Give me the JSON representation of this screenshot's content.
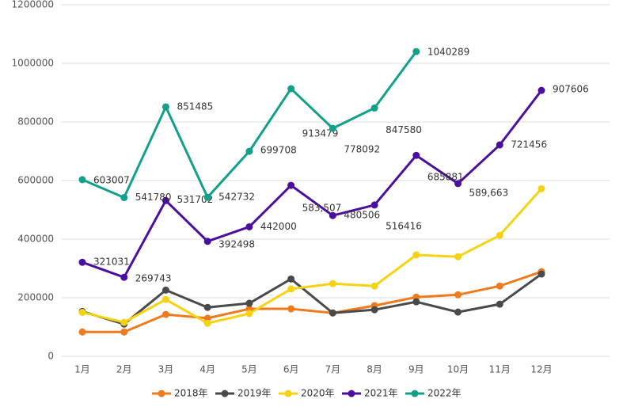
{
  "chart_data": {
    "type": "line",
    "categories": [
      "1月",
      "2月",
      "3月",
      "4月",
      "5月",
      "6月",
      "7月",
      "8月",
      "9月",
      "10月",
      "11月",
      "12月"
    ],
    "ylim": [
      0,
      1200000
    ],
    "yticks": [
      0,
      200000,
      400000,
      600000,
      800000,
      1000000,
      1200000
    ],
    "grid": true,
    "legend": "bottom",
    "series": [
      {
        "name": "2018年",
        "color": "#f07a1e",
        "values": [
          83000,
          83000,
          143000,
          130000,
          162000,
          162000,
          148000,
          173000,
          202000,
          210000,
          240000,
          289000
        ]
      },
      {
        "name": "2019年",
        "color": "#4a4a4a",
        "values": [
          153000,
          110000,
          226000,
          167000,
          181000,
          264000,
          148000,
          159000,
          186000,
          151000,
          178000,
          281000
        ]
      },
      {
        "name": "2020年",
        "color": "#f5d313",
        "values": [
          150000,
          116000,
          194000,
          113000,
          146000,
          230000,
          248000,
          240000,
          346000,
          340000,
          413000,
          572000
        ]
      },
      {
        "name": "2021年",
        "color": "#4b0fa0",
        "values": [
          321031,
          269743,
          531702,
          392498,
          442000,
          583507,
          480506,
          516416,
          685881,
          589663,
          721456,
          907606
        ],
        "value_labels": [
          "321031",
          "269743",
          "531702",
          "392498",
          "442000",
          "583,507",
          "480506",
          "516416",
          "685881",
          "589,663",
          "721456",
          "907606"
        ]
      },
      {
        "name": "2022年",
        "color": "#13a08a",
        "values": [
          603007,
          541780,
          851485,
          542732,
          699708,
          913479,
          778092,
          847580,
          1040289,
          null,
          null,
          null
        ],
        "value_labels": [
          "603007",
          "541780",
          "851485",
          "542732",
          "699708",
          "913479",
          "778092",
          "847580",
          "1040289",
          null,
          null,
          null
        ]
      }
    ]
  }
}
